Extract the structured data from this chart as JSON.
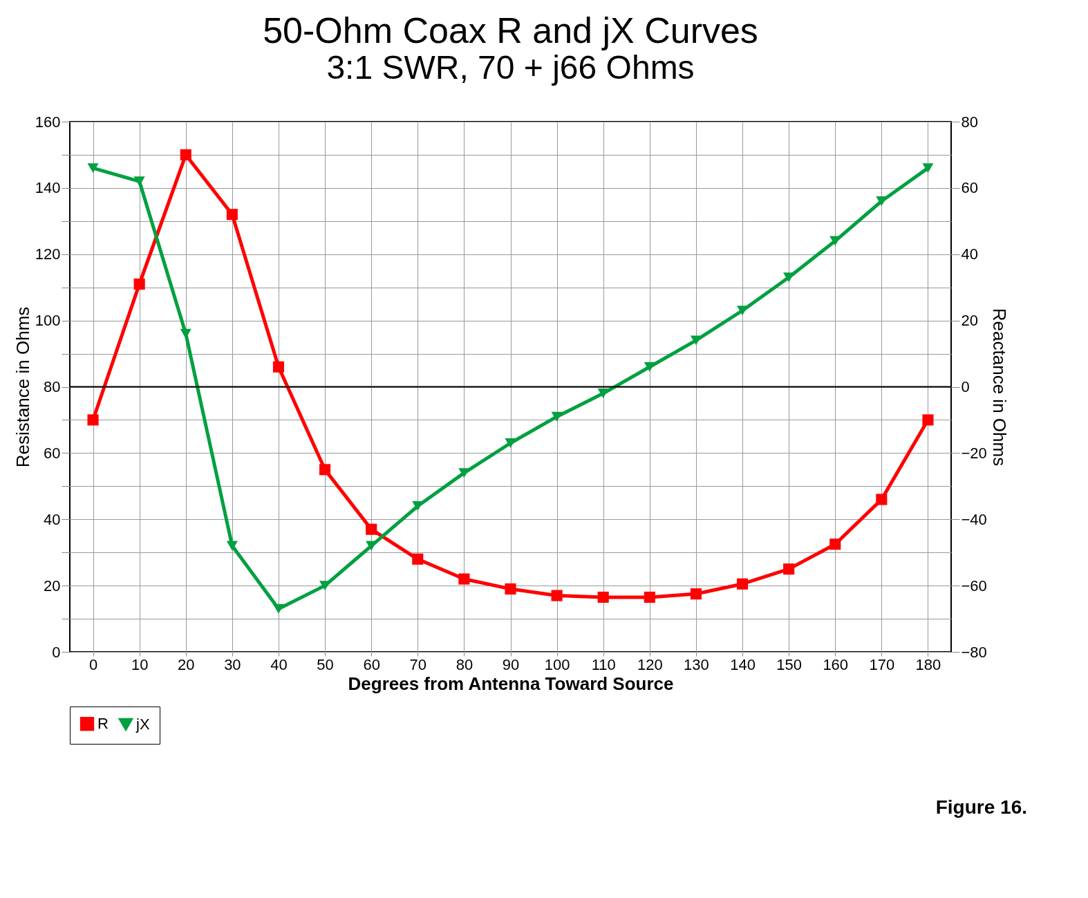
{
  "chart_data": {
    "type": "line",
    "title": "50-Ohm Coax R and jX Curves",
    "subtitle": "3:1 SWR, 70 + j66 Ohms",
    "xlabel": "Degrees from Antenna Toward Source",
    "ylabel": "Resistance in Ohms",
    "y2label": "Reactance in Ohms",
    "x": [
      0,
      10,
      20,
      30,
      40,
      50,
      60,
      70,
      80,
      90,
      100,
      110,
      120,
      130,
      140,
      150,
      160,
      170,
      180
    ],
    "series": [
      {
        "name": "R",
        "color": "#ff0000",
        "marker": "square",
        "values": [
          70,
          111,
          150,
          132,
          86,
          55,
          37,
          28,
          22,
          19,
          17,
          16.5,
          16.5,
          17.5,
          20.5,
          25,
          32.5,
          46,
          70
        ]
      },
      {
        "name": "jX",
        "color": "#00a040",
        "marker": "triangle",
        "axis": "y2",
        "values": [
          66,
          62,
          16,
          -48,
          -67,
          -60,
          -48,
          -36,
          -26,
          -17,
          -9,
          -2,
          6,
          14,
          23,
          33,
          44,
          56,
          66
        ]
      }
    ],
    "xlim": [
      -5,
      185
    ],
    "xticks": [
      0,
      10,
      20,
      30,
      40,
      50,
      60,
      70,
      80,
      90,
      100,
      110,
      120,
      130,
      140,
      150,
      160,
      170,
      180
    ],
    "ylim": [
      0,
      160
    ],
    "yticks": [
      0,
      {
        "value": 10,
        "label": null
      },
      20,
      {
        "value": 30,
        "label": null
      },
      40,
      {
        "value": 50,
        "label": null
      },
      60,
      {
        "value": 70,
        "label": null
      },
      80,
      {
        "value": 90,
        "label": null
      },
      100,
      {
        "value": 110,
        "label": null
      },
      120,
      {
        "value": 130,
        "label": null
      },
      140,
      {
        "value": 150,
        "label": null
      },
      160
    ],
    "y2lim": [
      -80,
      80
    ],
    "y2ticks": [
      -80,
      -60,
      -40,
      -20,
      0,
      20,
      40,
      60,
      80
    ],
    "ref_lines": [
      {
        "axis": "y2",
        "value": 0,
        "color": "#000000"
      }
    ],
    "grid": true,
    "legend": "bottom",
    "line_style": "solid",
    "annotations": [
      "Figure 16."
    ]
  }
}
